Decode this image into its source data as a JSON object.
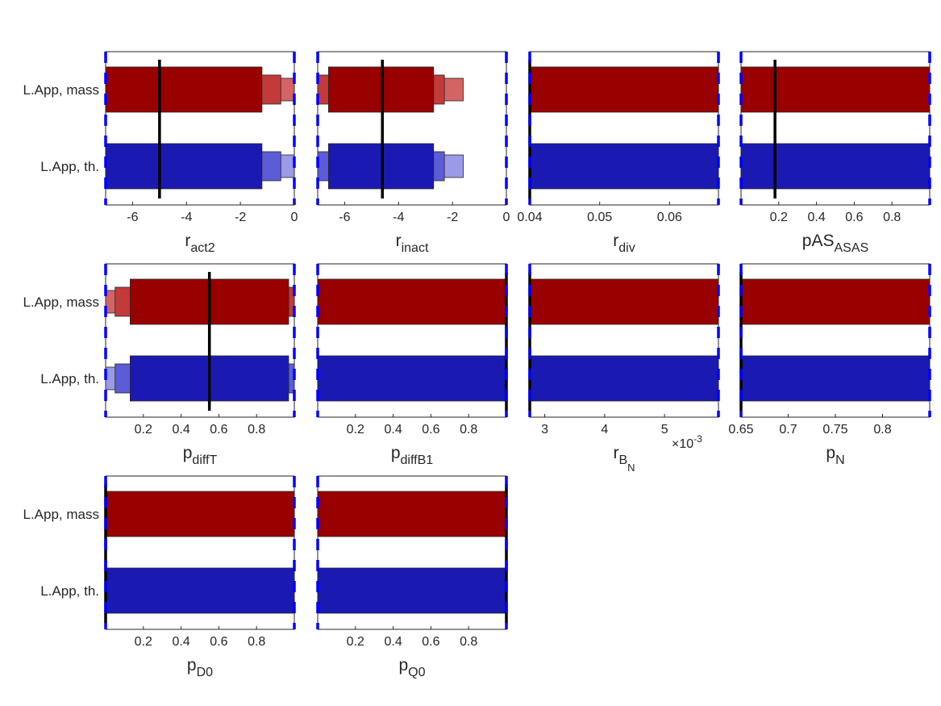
{
  "figure": {
    "row_labels": [
      "L.App, mass",
      "L.App, th."
    ]
  },
  "colors": {
    "mass_dark": "#990000",
    "mass_mid": "#c23a3a",
    "mass_light": "#d46464",
    "th_dark": "#1a1ab3",
    "th_mid": "#5c5cd6",
    "th_light": "#9a9ae6",
    "bound_line": "#0000ff",
    "estimate_line": "#000000"
  },
  "chart_data": [
    {
      "type": "bar",
      "xlabel_base": "r",
      "xlabel_sub": "act2",
      "xlim": [
        -7,
        0
      ],
      "xticks": [
        -6,
        -4,
        -2,
        0
      ],
      "xticklabels": [
        "-6",
        "-4",
        "-2",
        "0"
      ],
      "bounds": [
        -7,
        0
      ],
      "estimate": -5,
      "series": [
        {
          "name": "L.App, mass",
          "intervals": [
            [
              -7,
              -1.2
            ],
            [
              -7,
              -0.5
            ],
            [
              -7,
              0
            ]
          ]
        },
        {
          "name": "L.App, th.",
          "intervals": [
            [
              -7,
              -1.2
            ],
            [
              -7,
              -0.5
            ],
            [
              -7,
              0
            ]
          ]
        }
      ]
    },
    {
      "type": "bar",
      "xlabel_base": "r",
      "xlabel_sub": "inact",
      "xlim": [
        -7,
        0
      ],
      "xticks": [
        -6,
        -4,
        -2,
        0
      ],
      "xticklabels": [
        "-6",
        "-4",
        "-2",
        "0"
      ],
      "bounds": [
        -7,
        0
      ],
      "estimate": -4.6,
      "series": [
        {
          "name": "L.App, mass",
          "intervals": [
            [
              -6.6,
              -2.7
            ],
            [
              -7,
              -2.3
            ],
            [
              -7,
              -1.6
            ]
          ]
        },
        {
          "name": "L.App, th.",
          "intervals": [
            [
              -6.6,
              -2.7
            ],
            [
              -7,
              -2.3
            ],
            [
              -7,
              -1.6
            ]
          ]
        }
      ]
    },
    {
      "type": "bar",
      "xlabel_base": "r",
      "xlabel_sub": "div",
      "xlim": [
        0.04,
        0.067
      ],
      "xticks": [
        0.04,
        0.05,
        0.06
      ],
      "xticklabels": [
        "0.04",
        "0.05",
        "0.06"
      ],
      "bounds": [
        0.04,
        0.067
      ],
      "estimate": 0.04,
      "series": [
        {
          "name": "L.App, mass",
          "intervals": [
            [
              0.04,
              0.067
            ],
            [
              0.04,
              0.067
            ],
            [
              0.04,
              0.067
            ]
          ]
        },
        {
          "name": "L.App, th.",
          "intervals": [
            [
              0.04,
              0.067
            ],
            [
              0.04,
              0.067
            ],
            [
              0.04,
              0.067
            ]
          ]
        }
      ]
    },
    {
      "type": "bar",
      "xlabel_base": "pAS",
      "xlabel_sub": "ASAS",
      "xlim": [
        0,
        1
      ],
      "xticks": [
        0.2,
        0.4,
        0.6,
        0.8
      ],
      "xticklabels": [
        "0.2",
        "0.4",
        "0.6",
        "0.8"
      ],
      "bounds": [
        0,
        1
      ],
      "estimate": 0.18,
      "series": [
        {
          "name": "L.App, mass",
          "intervals": [
            [
              0,
              1
            ],
            [
              0,
              1
            ],
            [
              0,
              1
            ]
          ]
        },
        {
          "name": "L.App, th.",
          "intervals": [
            [
              0,
              1
            ],
            [
              0,
              1
            ],
            [
              0,
              1
            ]
          ]
        }
      ]
    },
    {
      "type": "bar",
      "xlabel_base": "p",
      "xlabel_sub": "diffT",
      "xlim": [
        0,
        1
      ],
      "xticks": [
        0.2,
        0.4,
        0.6,
        0.8
      ],
      "xticklabels": [
        "0.2",
        "0.4",
        "0.6",
        "0.8"
      ],
      "bounds": [
        0,
        1
      ],
      "estimate": 0.55,
      "series": [
        {
          "name": "L.App, mass",
          "intervals": [
            [
              0.13,
              0.97
            ],
            [
              0.05,
              1
            ],
            [
              0,
              1
            ]
          ]
        },
        {
          "name": "L.App, th.",
          "intervals": [
            [
              0.13,
              0.97
            ],
            [
              0.05,
              1
            ],
            [
              0,
              1
            ]
          ]
        }
      ]
    },
    {
      "type": "bar",
      "xlabel_base": "p",
      "xlabel_sub": "diffB1",
      "xlim": [
        0,
        1
      ],
      "xticks": [
        0.2,
        0.4,
        0.6,
        0.8
      ],
      "xticklabels": [
        "0.2",
        "0.4",
        "0.6",
        "0.8"
      ],
      "bounds": [
        0,
        1
      ],
      "estimate": 1,
      "series": [
        {
          "name": "L.App, mass",
          "intervals": [
            [
              0,
              1
            ],
            [
              0,
              1
            ],
            [
              0,
              1
            ]
          ]
        },
        {
          "name": "L.App, th.",
          "intervals": [
            [
              0,
              1
            ],
            [
              0,
              1
            ],
            [
              0,
              1
            ]
          ]
        }
      ]
    },
    {
      "type": "bar",
      "xlabel_base": "r",
      "xlabel_sub": "B",
      "xlabel_subsub": "N",
      "multiplier": "×10",
      "multiplier_exp": "-3",
      "xlim": [
        2.75,
        5.9
      ],
      "xticks": [
        3,
        4,
        5
      ],
      "xticklabels": [
        "3",
        "4",
        "5"
      ],
      "bounds": [
        2.75,
        5.9
      ],
      "estimate": 2.75,
      "series": [
        {
          "name": "L.App, mass",
          "intervals": [
            [
              2.75,
              5.9
            ],
            [
              2.75,
              5.9
            ],
            [
              2.75,
              5.9
            ]
          ]
        },
        {
          "name": "L.App, th.",
          "intervals": [
            [
              2.75,
              5.9
            ],
            [
              2.75,
              5.9
            ],
            [
              2.75,
              5.9
            ]
          ]
        }
      ]
    },
    {
      "type": "bar",
      "xlabel_base": "p",
      "xlabel_sub": "N",
      "xlim": [
        0.65,
        0.85
      ],
      "xticks": [
        0.65,
        0.7,
        0.75,
        0.8
      ],
      "xticklabels": [
        "0.65",
        "0.7",
        "0.75",
        "0.8"
      ],
      "bounds": [
        0.65,
        0.85
      ],
      "estimate": 0.65,
      "series": [
        {
          "name": "L.App, mass",
          "intervals": [
            [
              0.65,
              0.85
            ],
            [
              0.65,
              0.85
            ],
            [
              0.65,
              0.85
            ]
          ]
        },
        {
          "name": "L.App, th.",
          "intervals": [
            [
              0.65,
              0.85
            ],
            [
              0.65,
              0.85
            ],
            [
              0.65,
              0.85
            ]
          ]
        }
      ]
    },
    {
      "type": "bar",
      "xlabel_base": "p",
      "xlabel_sub": "D0",
      "xlim": [
        0,
        1
      ],
      "xticks": [
        0.2,
        0.4,
        0.6,
        0.8
      ],
      "xticklabels": [
        "0.2",
        "0.4",
        "0.6",
        "0.8"
      ],
      "bounds": [
        0,
        1
      ],
      "estimate": 0,
      "series": [
        {
          "name": "L.App, mass",
          "intervals": [
            [
              0,
              1
            ],
            [
              0,
              1
            ],
            [
              0,
              1
            ]
          ]
        },
        {
          "name": "L.App, th.",
          "intervals": [
            [
              0,
              1
            ],
            [
              0,
              1
            ],
            [
              0,
              1
            ]
          ]
        }
      ]
    },
    {
      "type": "bar",
      "xlabel_base": "p",
      "xlabel_sub": "Q0",
      "xlim": [
        0,
        1
      ],
      "xticks": [
        0.2,
        0.4,
        0.6,
        0.8
      ],
      "xticklabels": [
        "0.2",
        "0.4",
        "0.6",
        "0.8"
      ],
      "bounds": [
        0,
        1
      ],
      "estimate": 1,
      "series": [
        {
          "name": "L.App, mass",
          "intervals": [
            [
              0,
              1
            ],
            [
              0,
              1
            ],
            [
              0,
              1
            ]
          ]
        },
        {
          "name": "L.App, th.",
          "intervals": [
            [
              0,
              1
            ],
            [
              0,
              1
            ],
            [
              0,
              1
            ]
          ]
        }
      ]
    }
  ]
}
